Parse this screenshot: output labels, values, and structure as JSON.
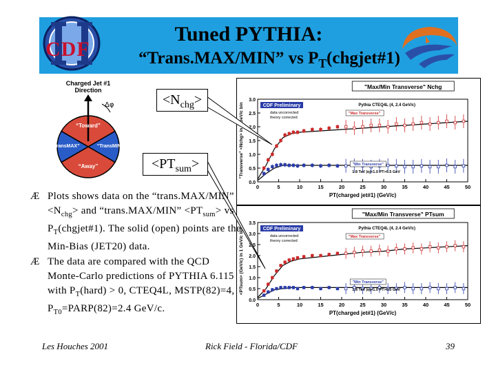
{
  "title": {
    "line1": "Tuned PYTHIA:",
    "line2_prefix": "“Trans.MAX/MIN” vs P",
    "line2_sub": "T",
    "line2_suffix": "(chgjet#1)"
  },
  "logo": {
    "cdf_text": "CDF"
  },
  "diagram": {
    "label_top1": "Charged Jet #1",
    "label_top2": "Direction",
    "phi_label": "Δφ",
    "toward": "“Toward”",
    "trans_max": "“TransMAX”",
    "trans_min": "“TransMIN”",
    "away": "“Away”",
    "colors": {
      "toward": "#d94a3a",
      "away": "#d94a3a",
      "transverse": "#2a5cc8",
      "border": "#000000"
    }
  },
  "bubbles": {
    "nchg_prefix": "<N",
    "nchg_sub": "chg",
    "nchg_suffix": ">",
    "ptsum_prefix": "<PT",
    "ptsum_sub": "sum",
    "ptsum_suffix": ">"
  },
  "bullets": [
    {
      "mark": "Æ",
      "p1": "Plots shows data on the “trans.MAX/MIN” <N",
      "s1": "chg",
      "p2": "> and “trans.MAX/MIN” <PT",
      "s2": "sum",
      "p3": "> vs P",
      "s3": "T",
      "p4": "(chgjet#1). The solid (open) points are the Min-Bias (JET20) data."
    },
    {
      "mark": "Æ",
      "p1": "The data are compared with the QCD Monte-Carlo predictions of PYTHIA 6.115 with P",
      "s1": "T",
      "p2": "(hard) > 0, CTEQ4L, MSTP(82)=4, P",
      "s2": "T0",
      "p3": "=PARP(82)=2.4 GeV/c."
    }
  ],
  "footer": {
    "left": "Les Houches 2001",
    "center": "Rick Field - Florida/CDF",
    "page": "39"
  },
  "chart_data": [
    {
      "type": "scatter",
      "title": "\"Max/Min Transverse\" Nchg",
      "xlabel": "PT(charged jet#1) (GeV/c)",
      "ylabel": "\"Transverse\" <Nchg> in 1 GeV/c bin",
      "xlim": [
        0,
        50
      ],
      "ylim": [
        0,
        3
      ],
      "xticks": [
        "0",
        "5",
        "10",
        "15",
        "20",
        "25",
        "30",
        "35",
        "40",
        "45",
        "50"
      ],
      "yticks": [
        "0.0",
        "0.5",
        "1.0",
        "1.5",
        "2.0",
        "2.5",
        "3.0"
      ],
      "annotations": {
        "preliminary": "CDF Preliminary",
        "note1": "data uncorrected",
        "note2": "theory corrected",
        "theory": "Pythia CTEQ4L (4, 2.4 GeV/c)",
        "max_label": "\"Max Transverse\"",
        "min_label": "\"Min Transverse\"",
        "cuts": "1.8 TeV |η|<1.0 PT>0.5 GeV"
      },
      "series": [
        {
          "name": "\"Max Transverse\"",
          "color": "#cc2a2a",
          "x": [
            1.5,
            2.5,
            3.5,
            4.5,
            5.5,
            6.5,
            7.5,
            8.5,
            9.5,
            11,
            13,
            15,
            17,
            19,
            21,
            23,
            25,
            27,
            29,
            31,
            33,
            35,
            37,
            39,
            41,
            43,
            45,
            47,
            49
          ],
          "y": [
            0.5,
            0.8,
            1.0,
            1.3,
            1.5,
            1.7,
            1.75,
            1.8,
            1.8,
            1.85,
            1.9,
            1.9,
            1.95,
            2.0,
            2.0,
            1.95,
            2.0,
            2.05,
            2.05,
            2.0,
            2.1,
            2.05,
            2.1,
            2.15,
            2.1,
            2.15,
            2.2,
            2.15,
            2.2
          ]
        },
        {
          "name": "\"Min Transverse\"",
          "color": "#2a3ca8",
          "x": [
            1.5,
            2.5,
            3.5,
            4.5,
            5.5,
            6.5,
            7.5,
            8.5,
            9.5,
            11,
            13,
            15,
            17,
            19,
            21,
            23,
            25,
            27,
            29,
            31,
            33,
            35,
            37,
            39,
            41,
            43,
            45,
            47,
            49
          ],
          "y": [
            0.3,
            0.45,
            0.55,
            0.6,
            0.62,
            0.62,
            0.6,
            0.6,
            0.58,
            0.6,
            0.6,
            0.58,
            0.6,
            0.58,
            0.58,
            0.6,
            0.58,
            0.55,
            0.58,
            0.6,
            0.58,
            0.55,
            0.55,
            0.58,
            0.55,
            0.55,
            0.6,
            0.55,
            0.58
          ]
        }
      ],
      "theory": {
        "x": [
          0,
          2,
          4,
          6,
          8,
          10,
          15,
          20,
          25,
          30,
          35,
          40,
          45,
          50
        ],
        "max": [
          0.1,
          0.6,
          1.2,
          1.6,
          1.75,
          1.8,
          1.85,
          1.9,
          1.95,
          2.0,
          2.05,
          2.1,
          2.15,
          2.2
        ],
        "min": [
          0.05,
          0.3,
          0.5,
          0.6,
          0.6,
          0.6,
          0.6,
          0.6,
          0.6,
          0.6,
          0.6,
          0.6,
          0.6,
          0.6
        ]
      }
    },
    {
      "type": "scatter",
      "title": "\"Max/Min Transverse\" PTsum",
      "xlabel": "PT(charged jet#1) (GeV/c)",
      "ylabel": "<PTsum> (GeV/c) in 1 GeV/c bin",
      "xlim": [
        0,
        50
      ],
      "ylim": [
        0,
        3.5
      ],
      "xticks": [
        "0",
        "5",
        "10",
        "15",
        "20",
        "25",
        "30",
        "35",
        "40",
        "45",
        "50"
      ],
      "yticks": [
        "0.0",
        "0.5",
        "1.0",
        "1.5",
        "2.0",
        "2.5",
        "3.0",
        "3.5"
      ],
      "annotations": {
        "preliminary": "CDF Preliminary",
        "note1": "data uncorrected",
        "note2": "theory corrected",
        "theory": "Pythia CTEQ4L (4, 2.4 GeV/c)",
        "max_label": "\"Max Transverse\"",
        "min_label": "\"Min Transverse\"",
        "cuts": "1.8 TeV |η|<1.0 PT>0.5 GeV"
      },
      "series": [
        {
          "name": "\"Max Transverse\"",
          "color": "#cc2a2a",
          "x": [
            1.5,
            2.5,
            3.5,
            4.5,
            5.5,
            6.5,
            7.5,
            8.5,
            9.5,
            11,
            13,
            15,
            17,
            19,
            21,
            23,
            25,
            27,
            29,
            31,
            33,
            35,
            37,
            39,
            41,
            43,
            45,
            47,
            49
          ],
          "y": [
            0.4,
            0.7,
            1.0,
            1.3,
            1.55,
            1.7,
            1.8,
            1.85,
            1.9,
            1.95,
            2.0,
            2.0,
            2.05,
            2.1,
            2.1,
            2.15,
            2.2,
            2.2,
            2.25,
            2.2,
            2.3,
            2.3,
            2.35,
            2.3,
            2.4,
            2.35,
            2.4,
            2.45,
            2.4
          ]
        },
        {
          "name": "\"Min Transverse\"",
          "color": "#2a3ca8",
          "x": [
            1.5,
            2.5,
            3.5,
            4.5,
            5.5,
            6.5,
            7.5,
            8.5,
            9.5,
            11,
            13,
            15,
            17,
            19,
            21,
            23,
            25,
            27,
            29,
            31,
            33,
            35,
            37,
            39,
            41,
            43,
            45,
            47,
            49
          ],
          "y": [
            0.2,
            0.35,
            0.45,
            0.5,
            0.55,
            0.55,
            0.55,
            0.55,
            0.5,
            0.55,
            0.55,
            0.5,
            0.55,
            0.5,
            0.5,
            0.55,
            0.5,
            0.5,
            0.55,
            0.5,
            0.5,
            0.55,
            0.5,
            0.5,
            0.55,
            0.5,
            0.5,
            0.55,
            0.5
          ]
        }
      ],
      "theory": {
        "x": [
          0,
          2,
          4,
          6,
          8,
          10,
          15,
          20,
          25,
          30,
          35,
          40,
          45,
          50
        ],
        "max": [
          0.1,
          0.5,
          1.1,
          1.55,
          1.75,
          1.85,
          1.95,
          2.05,
          2.15,
          2.2,
          2.3,
          2.35,
          2.4,
          2.45
        ],
        "min": [
          0.05,
          0.25,
          0.45,
          0.5,
          0.55,
          0.55,
          0.55,
          0.55,
          0.55,
          0.55,
          0.55,
          0.55,
          0.55,
          0.55
        ]
      }
    }
  ]
}
